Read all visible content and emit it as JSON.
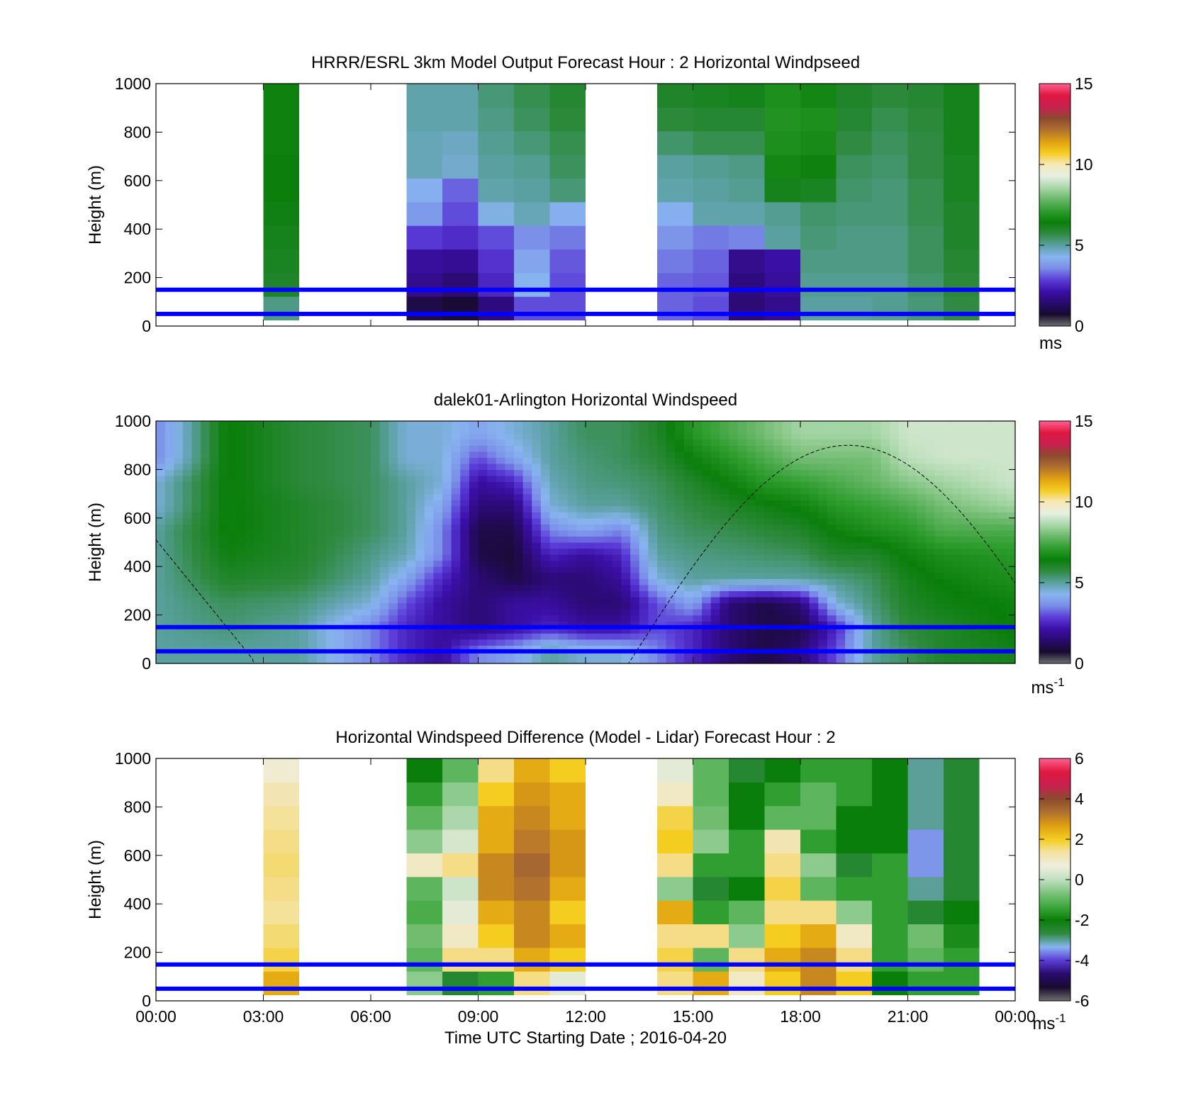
{
  "colors": {
    "speed_scale": [
      "#6e6e6e",
      "#160b2e",
      "#2a0a6e",
      "#3b0fa8",
      "#5a3cd8",
      "#7a8ee8",
      "#88b4f0",
      "#5aa0a0",
      "#2f8a3f",
      "#0a7e0a",
      "#2f9e2f",
      "#6ab86a",
      "#a9d7a9",
      "#e6efe2",
      "#f7e8b8",
      "#f5cc20",
      "#e0a010",
      "#b07030",
      "#8c4a2e",
      "#c82050",
      "#e01840",
      "#ff6090"
    ],
    "diff_scale": [
      "#6e6e6e",
      "#160b2e",
      "#2a0a6e",
      "#5a3cd8",
      "#88b4f0",
      "#2f8a3f",
      "#0a7e0a",
      "#3ea83e",
      "#7cc27c",
      "#c0e0c0",
      "#eeeedd",
      "#f4e3a8",
      "#f5cc20",
      "#e0a010",
      "#b07030",
      "#8c4a2e",
      "#c82050",
      "#e01840",
      "#ff6090"
    ],
    "blue_line": "#0000ff",
    "nodata": "#ffffff"
  },
  "panels": [
    {
      "title": "HRRR/ESRL 3km Model Output   Forecast Hour : 2 Horizontal Windpseed",
      "ylabel": "Height (m)",
      "yticks": [
        "0",
        "200",
        "400",
        "600",
        "800",
        "1000"
      ],
      "cbar_ticks": [
        "0",
        "5",
        "10",
        "15"
      ],
      "cbar_unit": "ms",
      "cbar_unit_sup": ""
    },
    {
      "title": "dalek01-Arlington  Horizontal Windspeed",
      "ylabel": "Height (m)",
      "yticks": [
        "0",
        "200",
        "400",
        "600",
        "800",
        "1000"
      ],
      "cbar_ticks": [
        "0",
        "5",
        "10",
        "15"
      ],
      "cbar_unit": "ms",
      "cbar_unit_sup": "-1"
    },
    {
      "title": "Horizontal Windspeed Difference (Model - Lidar) Forecast Hour : 2",
      "ylabel": "Height (m)",
      "yticks": [
        "0",
        "200",
        "400",
        "600",
        "800",
        "1000"
      ],
      "cbar_ticks": [
        "-6",
        "-4",
        "-2",
        "0",
        "2",
        "4",
        "6"
      ],
      "cbar_unit": "ms",
      "cbar_unit_sup": "-1"
    }
  ],
  "xticks": [
    "00:00",
    "03:00",
    "06:00",
    "09:00",
    "12:00",
    "15:00",
    "18:00",
    "21:00",
    "00:00"
  ],
  "xlabel": "Time UTC  Starting Date ; 2016-04-20",
  "chart_data": [
    {
      "type": "heatmap",
      "title": "HRRR/ESRL 3km Model Output   Forecast Hour : 2 Horizontal Windpseed",
      "ylabel": "Height (m)",
      "xlim_hours": [
        0,
        24
      ],
      "ylim": [
        0,
        1000
      ],
      "clim": [
        0,
        15
      ],
      "reference_lines_m": [
        50,
        150
      ],
      "hour_bins": [
        {
          "start": 3,
          "end": 4,
          "speeds": [
            5.2,
            6.0,
            6.1,
            6.2,
            6.3,
            6.4,
            6.4,
            6.5,
            6.5,
            6.5
          ]
        },
        {
          "start": 7,
          "end": 8,
          "speeds": [
            1.0,
            1.8,
            2.0,
            2.8,
            3.8,
            4.2,
            4.8,
            4.8,
            4.9,
            4.9
          ]
        },
        {
          "start": 8,
          "end": 9,
          "speeds": [
            0.8,
            1.5,
            1.9,
            2.6,
            3.0,
            3.2,
            4.6,
            4.7,
            4.9,
            4.9
          ]
        },
        {
          "start": 9,
          "end": 10,
          "speeds": [
            1.6,
            2.5,
            2.7,
            3.0,
            4.4,
            4.9,
            5.0,
            5.1,
            5.2,
            5.3
          ]
        },
        {
          "start": 10,
          "end": 11,
          "speeds": [
            3.0,
            4.3,
            4.0,
            3.6,
            4.8,
            5.0,
            5.1,
            5.3,
            5.5,
            5.6
          ]
        },
        {
          "start": 11,
          "end": 12,
          "speeds": [
            3.0,
            3.0,
            3.1,
            3.4,
            4.2,
            5.3,
            5.5,
            5.6,
            5.8,
            5.9
          ]
        },
        {
          "start": 14,
          "end": 15,
          "speeds": [
            3.2,
            3.2,
            3.4,
            3.7,
            4.2,
            4.9,
            5.0,
            5.4,
            5.8,
            6.0
          ]
        },
        {
          "start": 15,
          "end": 16,
          "speeds": [
            3.0,
            3.1,
            3.2,
            3.4,
            4.9,
            5.0,
            5.1,
            5.6,
            5.9,
            6.1
          ]
        },
        {
          "start": 16,
          "end": 17,
          "speeds": [
            1.5,
            1.6,
            1.8,
            3.5,
            4.9,
            5.1,
            5.2,
            5.6,
            5.9,
            6.2
          ]
        },
        {
          "start": 17,
          "end": 18,
          "speeds": [
            1.8,
            2.0,
            2.1,
            5.0,
            5.1,
            6.2,
            6.6,
            6.8,
            6.9,
            6.8
          ]
        },
        {
          "start": 18,
          "end": 19,
          "speeds": [
            5.0,
            5.1,
            5.2,
            5.3,
            5.4,
            6.1,
            6.5,
            6.7,
            6.8,
            6.6
          ]
        },
        {
          "start": 19,
          "end": 20,
          "speeds": [
            5.0,
            5.1,
            5.2,
            5.2,
            5.3,
            5.4,
            5.5,
            5.7,
            5.9,
            6.0
          ]
        },
        {
          "start": 20,
          "end": 21,
          "speeds": [
            5.1,
            5.1,
            5.2,
            5.2,
            5.3,
            5.3,
            5.4,
            5.5,
            5.6,
            5.8
          ]
        },
        {
          "start": 21,
          "end": 22,
          "speeds": [
            5.3,
            5.4,
            5.5,
            5.5,
            5.6,
            5.6,
            5.7,
            5.7,
            5.8,
            5.9
          ]
        },
        {
          "start": 22,
          "end": 23,
          "speeds": [
            5.7,
            5.8,
            5.9,
            6.0,
            6.0,
            6.1,
            6.1,
            6.2,
            6.2,
            6.2
          ]
        }
      ]
    },
    {
      "type": "heatmap",
      "title": "dalek01-Arlington  Horizontal Windspeed",
      "ylabel": "Height (m)",
      "xlim_hours": [
        0,
        24
      ],
      "ylim": [
        0,
        1000
      ],
      "clim": [
        0,
        15
      ],
      "reference_lines_m": [
        50,
        150
      ],
      "time_hours": [
        0,
        2,
        4,
        6,
        7,
        8,
        9,
        10,
        11,
        12,
        13,
        14,
        15,
        16,
        17,
        18,
        19,
        20,
        21,
        22,
        24
      ],
      "height_m": [
        50,
        150,
        250,
        350,
        450,
        550,
        650,
        750,
        850,
        950
      ],
      "speeds": [
        [
          5.0,
          5.0,
          5.0,
          5.0,
          5.0,
          5.0,
          4.5,
          4.5,
          3.5,
          3.5
        ],
        [
          5.0,
          5.3,
          5.5,
          6.0,
          6.3,
          6.5,
          6.5,
          6.5,
          6.5,
          6.5
        ],
        [
          5.0,
          5.0,
          5.3,
          5.8,
          6.0,
          6.0,
          6.0,
          5.8,
          5.8,
          5.8
        ],
        [
          3.5,
          3.5,
          4.5,
          5.0,
          5.2,
          5.5,
          5.5,
          5.5,
          5.5,
          5.5
        ],
        [
          2.5,
          2.5,
          3.0,
          4.0,
          4.8,
          5.0,
          5.0,
          5.0,
          4.5,
          4.5
        ],
        [
          2.0,
          2.0,
          2.0,
          2.5,
          3.5,
          3.5,
          4.0,
          4.5,
          4.5,
          4.5
        ],
        [
          3.5,
          1.5,
          1.5,
          1.5,
          1.0,
          1.0,
          1.5,
          2.0,
          3.0,
          4.0
        ],
        [
          4.0,
          2.0,
          2.0,
          1.0,
          0.8,
          1.0,
          1.5,
          2.5,
          4.0,
          4.5
        ],
        [
          5.0,
          2.5,
          2.0,
          1.5,
          2.5,
          3.5,
          4.5,
          4.8,
          5.0,
          5.0
        ],
        [
          4.5,
          2.0,
          1.5,
          1.5,
          2.0,
          4.0,
          5.0,
          5.2,
          5.3,
          5.5
        ],
        [
          4.5,
          2.0,
          1.5,
          2.0,
          2.5,
          3.5,
          5.0,
          5.3,
          5.5,
          5.5
        ],
        [
          3.5,
          3.0,
          3.0,
          4.5,
          5.0,
          5.2,
          5.4,
          5.5,
          5.8,
          6.0
        ],
        [
          2.5,
          2.5,
          4.0,
          5.0,
          5.2,
          5.5,
          5.7,
          6.0,
          6.5,
          7.0
        ],
        [
          1.5,
          1.5,
          1.5,
          5.0,
          5.3,
          5.6,
          6.0,
          6.5,
          7.0,
          7.5
        ],
        [
          1.0,
          1.0,
          1.0,
          5.0,
          5.4,
          5.8,
          6.3,
          7.0,
          7.5,
          8.0
        ],
        [
          1.5,
          1.0,
          1.5,
          5.0,
          5.5,
          6.0,
          6.5,
          7.2,
          8.0,
          8.5
        ],
        [
          3.0,
          2.5,
          4.5,
          5.2,
          6.0,
          6.5,
          7.0,
          7.5,
          8.0,
          8.5
        ],
        [
          5.0,
          5.0,
          5.3,
          5.5,
          6.0,
          6.8,
          7.2,
          7.8,
          8.0,
          8.5
        ],
        [
          5.5,
          5.8,
          6.0,
          6.2,
          6.5,
          7.0,
          7.5,
          8.2,
          8.8,
          9.0
        ],
        [
          6.0,
          6.0,
          6.3,
          6.5,
          6.8,
          7.5,
          8.0,
          8.5,
          9.0,
          9.0
        ],
        [
          6.2,
          6.5,
          6.5,
          6.8,
          7.0,
          7.5,
          8.5,
          9.0,
          9.0,
          9.0
        ]
      ]
    },
    {
      "type": "heatmap",
      "title": "Horizontal Windspeed Difference (Model - Lidar) Forecast Hour : 2",
      "ylabel": "Height (m)",
      "xlabel": "Time UTC  Starting Date ; 2016-04-20",
      "xlim_hours": [
        0,
        24
      ],
      "ylim": [
        0,
        1000
      ],
      "clim": [
        -6,
        6
      ],
      "reference_lines_m": [
        50,
        150
      ],
      "hour_bins": [
        {
          "start": 3,
          "end": 4,
          "diffs": [
            2.5,
            1.8,
            1.6,
            1.4,
            1.5,
            1.6,
            1.5,
            1.4,
            1.2,
            0.8
          ]
        },
        {
          "start": 7,
          "end": 8,
          "diffs": [
            -0.5,
            -1.0,
            -0.8,
            -1.2,
            -1.0,
            1.0,
            -0.5,
            -1.0,
            -1.5,
            -2.0
          ]
        },
        {
          "start": 8,
          "end": 9,
          "diffs": [
            -2.5,
            1.5,
            1.0,
            0.5,
            0.2,
            1.5,
            0.3,
            -0.2,
            -0.5,
            -1.0
          ]
        },
        {
          "start": 9,
          "end": 10,
          "diffs": [
            -1.5,
            1.5,
            2.0,
            2.5,
            3.0,
            3.0,
            2.5,
            2.5,
            2.0,
            1.5
          ]
        },
        {
          "start": 10,
          "end": 11,
          "diffs": [
            1.5,
            2.5,
            3.0,
            3.0,
            3.3,
            3.5,
            3.2,
            3.0,
            2.8,
            2.5
          ]
        },
        {
          "start": 11,
          "end": 12,
          "diffs": [
            0.5,
            2.0,
            2.5,
            2.0,
            2.5,
            2.8,
            2.8,
            2.5,
            2.5,
            2.0
          ]
        },
        {
          "start": 14,
          "end": 15,
          "diffs": [
            1.5,
            1.8,
            1.5,
            2.5,
            -0.5,
            1.5,
            2.0,
            1.8,
            1.0,
            0.5
          ]
        },
        {
          "start": 15,
          "end": 16,
          "diffs": [
            2.5,
            -1.0,
            1.5,
            -1.5,
            -2.5,
            -1.5,
            -0.5,
            -0.8,
            -1.0,
            -1.0
          ]
        },
        {
          "start": 16,
          "end": 17,
          "diffs": [
            1.0,
            1.5,
            -0.5,
            -1.0,
            -2.0,
            -1.5,
            -1.5,
            -2.0,
            -2.0,
            -2.5
          ]
        },
        {
          "start": 17,
          "end": 18,
          "diffs": [
            2.0,
            2.5,
            2.0,
            1.5,
            1.8,
            1.5,
            1.2,
            -1.0,
            -1.5,
            -2.0
          ]
        },
        {
          "start": 18,
          "end": 19,
          "diffs": [
            3.0,
            3.0,
            2.5,
            1.5,
            -1.0,
            -0.5,
            -1.5,
            -1.0,
            -1.0,
            -1.5
          ]
        },
        {
          "start": 19,
          "end": 20,
          "diffs": [
            2.0,
            1.5,
            1.0,
            -0.5,
            -1.5,
            -2.5,
            -2.0,
            -2.0,
            -1.5,
            -1.5
          ]
        },
        {
          "start": 20,
          "end": 21,
          "diffs": [
            -2.0,
            -1.5,
            -1.5,
            -1.5,
            -1.5,
            -1.5,
            -2.0,
            -2.0,
            -2.0,
            -2.0
          ]
        },
        {
          "start": 21,
          "end": 22,
          "diffs": [
            -1.5,
            -1.0,
            -0.8,
            -2.5,
            -3.0,
            -3.5,
            -3.5,
            -3.0,
            -3.0,
            -3.0
          ]
        },
        {
          "start": 22,
          "end": 23,
          "diffs": [
            -1.5,
            -1.5,
            -1.8,
            -2.0,
            -2.5,
            -2.5,
            -2.5,
            -2.5,
            -2.5,
            -2.5
          ]
        }
      ]
    }
  ]
}
